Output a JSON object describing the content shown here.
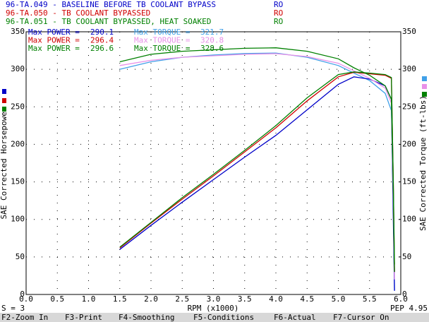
{
  "chart_data": {
    "type": "line",
    "runs": [
      {
        "name": "96-TA.049 - BASELINE BEFORE TB COOLANT BYPASS",
        "tag": "RO",
        "color": "#0000c8",
        "torque_color": "#40a0e8",
        "power_max": 290.1,
        "torque_max": 321.7,
        "power_values": [
          60,
          92,
          123,
          153,
          183,
          212,
          246,
          280,
          290,
          287,
          278,
          260,
          100,
          5
        ],
        "torque_values": [
          300,
          310,
          316,
          319,
          321,
          321.7,
          316,
          305,
          295,
          285,
          268,
          245,
          120,
          5
        ]
      },
      {
        "name": "96-TA.050 - TB COOLANT BYPASSED",
        "tag": "RO",
        "color": "#d00000",
        "torque_color": "#e890e8",
        "power_max": 296.4,
        "torque_max": 320.8,
        "power_values": [
          62,
          95,
          127,
          158,
          190,
          222,
          258,
          290,
          296,
          294,
          292,
          288,
          150,
          30
        ],
        "torque_values": [
          305,
          312,
          316,
          318,
          320,
          320.8,
          317,
          308,
          298,
          288,
          275,
          255,
          130,
          20
        ]
      },
      {
        "name": "96-TA.051 - TB COOLANT BYPASSED, HEAT SOAKED",
        "tag": "RO",
        "color": "#008000",
        "torque_color": "#008000",
        "power_max": 296.6,
        "torque_max": 328.6,
        "power_values": [
          63,
          96,
          129,
          160,
          192,
          225,
          262,
          293,
          296.6,
          295,
          293,
          289,
          150,
          40
        ],
        "torque_values": [
          310,
          320,
          324,
          326,
          328,
          328.6,
          324,
          314,
          302,
          292,
          278,
          260,
          140,
          30
        ]
      }
    ],
    "power_max_label": "Max POWER =",
    "torque_max_label": "Max TORQUE =",
    "x": [
      1.5,
      2.0,
      2.5,
      3.0,
      3.5,
      4.0,
      4.5,
      5.0,
      5.25,
      5.5,
      5.75,
      5.85,
      5.88,
      5.9
    ],
    "xlabel": "RPM (x1000)",
    "ylabel": "SAE Corrected Horsepower",
    "y2label": "SAE Corrected Torque (ft-lbs)",
    "xlim": [
      0,
      6
    ],
    "ylim": [
      0,
      350
    ],
    "y2lim": [
      0,
      350
    ],
    "xticks": [
      {
        "value": 0,
        "label": "0.0"
      },
      {
        "value": 0.5,
        "label": "0.5"
      },
      {
        "value": 1,
        "label": "1.0"
      },
      {
        "value": 1.5,
        "label": "1.5"
      },
      {
        "value": 2,
        "label": "2.0"
      },
      {
        "value": 2.5,
        "label": "2.5"
      },
      {
        "value": 3,
        "label": "3.0"
      },
      {
        "value": 3.5,
        "label": "3.5"
      },
      {
        "value": 4,
        "label": "4.0"
      },
      {
        "value": 4.5,
        "label": "4.5"
      },
      {
        "value": 5,
        "label": "5.0"
      },
      {
        "value": 5.5,
        "label": "5.5"
      },
      {
        "value": 6,
        "label": "6.0"
      }
    ],
    "yticks": [
      0,
      50,
      100,
      150,
      200,
      250,
      300,
      350
    ],
    "y2ticks": [
      0,
      50,
      100,
      150,
      200,
      250,
      300,
      350
    ],
    "grid": true,
    "status_left": "S = 3",
    "status_right": "PEP 4.95",
    "keys": [
      "F2-Zoom In",
      "F3-Print",
      "F4-Smoothing",
      "F5-Conditions",
      "F6-Actual",
      "F7-Cursor On"
    ]
  }
}
